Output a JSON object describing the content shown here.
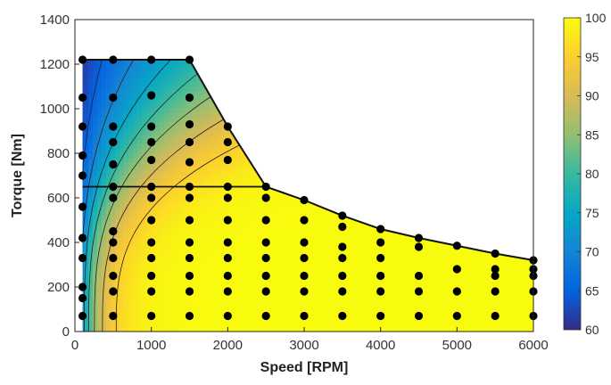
{
  "chart_data": {
    "type": "heatmap",
    "subtype": "efficiency map with contour lines and operating-point scatter",
    "xlabel": "Speed [RPM]",
    "ylabel": "Torque [Nm]",
    "xlim": [
      0,
      6000
    ],
    "ylim": [
      0,
      1400
    ],
    "xticks": [
      "0",
      "1000",
      "2000",
      "3000",
      "4000",
      "5000",
      "6000"
    ],
    "yticks": [
      "0",
      "200",
      "400",
      "600",
      "800",
      "1000",
      "1200",
      "1400"
    ],
    "grid": false,
    "colorbar": {
      "range": [
        60,
        100
      ],
      "ticks": [
        "60",
        "65",
        "70",
        "75",
        "80",
        "85",
        "90",
        "95",
        "100"
      ],
      "colormap": "parula",
      "colors": [
        "#352a87",
        "#0363e1",
        "#1485d4",
        "#06a7c6",
        "#38b99e",
        "#92bf73",
        "#d9ba56",
        "#fcce2e",
        "#f9fb0e"
      ]
    },
    "envelope": {
      "speed": [
        100,
        1500,
        2000,
        2500,
        3000,
        3500,
        4000,
        4500,
        5000,
        5500,
        6000
      ],
      "torque": [
        1220,
        1220,
        920,
        650,
        590,
        520,
        460,
        420,
        385,
        350,
        320
      ]
    },
    "secondary_envelope": {
      "speed": [
        100,
        2500
      ],
      "torque": [
        650,
        650
      ]
    },
    "operating_points": [
      {
        "speed": 100,
        "torque": [
          1220,
          1050,
          920,
          790,
          700,
          560,
          420,
          330,
          200,
          150,
          70
        ]
      },
      {
        "speed": 500,
        "torque": [
          1220,
          1050,
          920,
          850,
          750,
          650,
          600,
          450,
          400,
          330,
          250,
          180,
          70
        ]
      },
      {
        "speed": 1000,
        "torque": [
          1220,
          1060,
          920,
          850,
          770,
          650,
          600,
          500,
          400,
          330,
          250,
          180,
          70
        ]
      },
      {
        "speed": 1500,
        "torque": [
          1220,
          1050,
          930,
          850,
          760,
          650,
          600,
          500,
          400,
          330,
          250,
          180,
          70
        ]
      },
      {
        "speed": 2000,
        "torque": [
          920,
          850,
          770,
          650,
          600,
          500,
          400,
          330,
          250,
          180,
          70
        ]
      },
      {
        "speed": 2500,
        "torque": [
          650,
          600,
          500,
          400,
          330,
          250,
          180,
          70
        ]
      },
      {
        "speed": 3000,
        "torque": [
          590,
          500,
          400,
          330,
          250,
          180,
          70
        ]
      },
      {
        "speed": 3500,
        "torque": [
          520,
          470,
          380,
          330,
          250,
          180,
          70
        ]
      },
      {
        "speed": 4000,
        "torque": [
          460,
          400,
          330,
          250,
          180,
          70
        ]
      },
      {
        "speed": 4500,
        "torque": [
          420,
          380,
          250,
          180,
          70
        ]
      },
      {
        "speed": 5000,
        "torque": [
          385,
          280,
          180,
          70
        ]
      },
      {
        "speed": 5500,
        "torque": [
          350,
          280,
          250,
          180,
          70
        ]
      },
      {
        "speed": 6000,
        "torque": [
          320,
          280,
          250,
          180,
          70
        ]
      }
    ],
    "efficiency_contours": [
      60,
      65,
      70,
      75,
      80,
      85,
      90,
      95
    ]
  }
}
